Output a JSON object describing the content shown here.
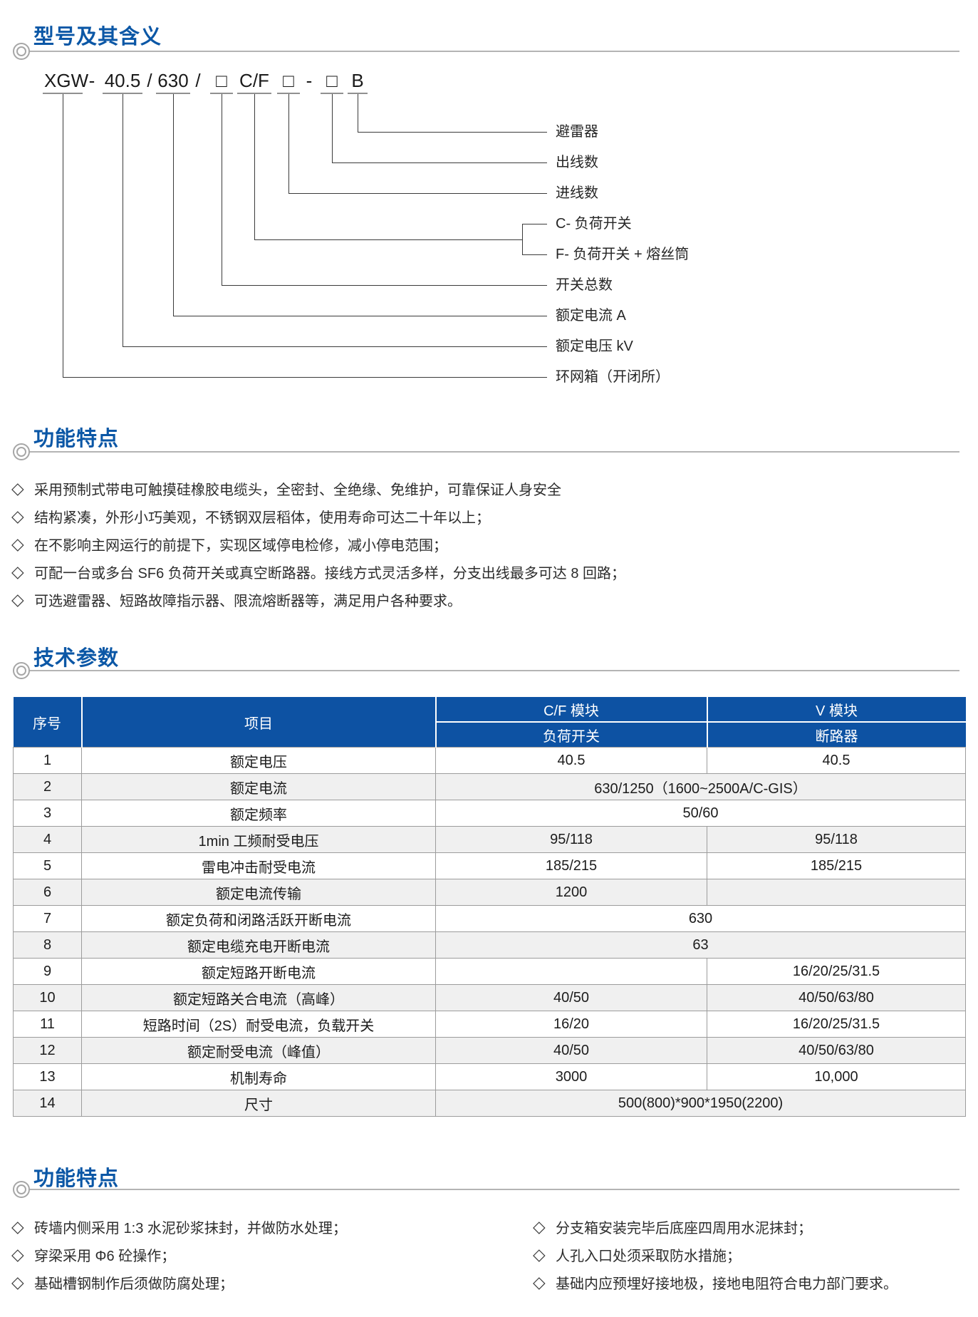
{
  "sections": {
    "model_meaning": {
      "title": "型号及其含义"
    },
    "features_top": {
      "title": "功能特点"
    },
    "tech_params": {
      "title": "技术参数"
    },
    "features_bottom": {
      "title": "功能特点"
    }
  },
  "model_diagram": {
    "tokens": [
      "XGW",
      "-",
      "40.5",
      "/",
      "630",
      "/",
      "□",
      "C/F",
      "□",
      "-",
      "□",
      "B"
    ],
    "labels": [
      "避雷器",
      "出线数",
      "进线数",
      "C- 负荷开关",
      "F- 负荷开关 + 熔丝筒",
      "开关总数",
      "额定电流 A",
      "额定电压 kV",
      "环网箱（开闭所）"
    ]
  },
  "features_top": {
    "bullet_char": "◇",
    "items": [
      "采用预制式带电可触摸硅橡胶电缆头，全密封、全绝缘、免维护，可靠保证人身安全",
      "结构紧凑，外形小巧美观，不锈钢双层稻体，使用寿命可达二十年以上；",
      "在不影响主网运行的前提下，实现区域停电检修，减小停电范围；",
      "可配一台或多台 SF6 负荷开关或真空断路器。接线方式灵活多样，分支出线最多可达 8 回路；",
      "可选避雷器、短路故障指示器、限流熔断器等，满足用户各种要求。"
    ]
  },
  "tech_table": {
    "header": {
      "col_no": "序号",
      "col_item": "项目",
      "col_cf": "C/F 模块",
      "col_v": "V 模块",
      "sub_cf": "负荷开关",
      "sub_v": "断路器"
    },
    "rows": [
      {
        "no": "1",
        "item": "额定电压",
        "cf": "40.5",
        "v": "40.5"
      },
      {
        "no": "2",
        "item": "额定电流",
        "merged": "630/1250（1600~2500A/C-GIS）"
      },
      {
        "no": "3",
        "item": "额定频率",
        "merged": "50/60"
      },
      {
        "no": "4",
        "item": "1min 工频耐受电压",
        "cf": "95/118",
        "v": "95/118"
      },
      {
        "no": "5",
        "item": "雷电冲击耐受电流",
        "cf": "185/215",
        "v": "185/215"
      },
      {
        "no": "6",
        "item": "额定电流传输",
        "cf": "1200",
        "v": ""
      },
      {
        "no": "7",
        "item": "额定负荷和闭路活跃开断电流",
        "merged": "630"
      },
      {
        "no": "8",
        "item": "额定电缆充电开断电流",
        "merged": "63"
      },
      {
        "no": "9",
        "item": "额定短路开断电流",
        "cf": "",
        "v": "16/20/25/31.5"
      },
      {
        "no": "10",
        "item": "额定短路关合电流（高峰）",
        "cf": "40/50",
        "v": "40/50/63/80"
      },
      {
        "no": "11",
        "item": "短路时间（2S）耐受电流，负载开关",
        "cf": "16/20",
        "v": "16/20/25/31.5"
      },
      {
        "no": "12",
        "item": "额定耐受电流（峰值）",
        "cf": "40/50",
        "v": "40/50/63/80"
      },
      {
        "no": "13",
        "item": "机制寿命",
        "cf": "3000",
        "v": "10,000"
      },
      {
        "no": "14",
        "item": "尺寸",
        "merged": "500(800)*900*1950(2200)"
      }
    ]
  },
  "features_bottom": {
    "bullet_char": "◇",
    "left": [
      "砖墙内侧采用 1:3 水泥砂浆抹封，并做防水处理；",
      "穿梁采用 Φ6 砼操作；",
      "基础槽钢制作后须做防腐处理；"
    ],
    "right": [
      "分支箱安装完毕后底座四周用水泥抹封；",
      "人孔入口处须采取防水措施；",
      "基础内应预埋好接地极，接地电阻符合电力部门要求。"
    ]
  },
  "colors": {
    "accent_blue": "#0b57a6",
    "table_header_blue": "#0d52a3",
    "row_alt_gray": "#f0f0f0"
  }
}
